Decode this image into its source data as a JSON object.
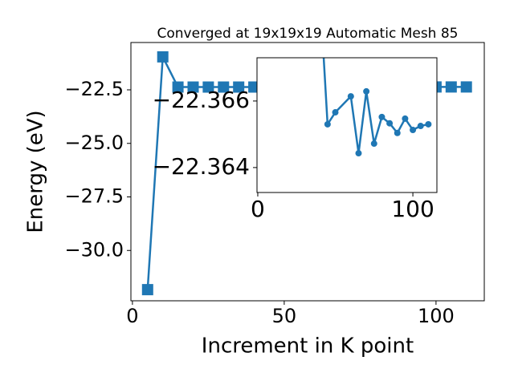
{
  "chart_data": [
    {
      "type": "line",
      "title": "Converged at 19x19x19 Automatic Mesh 85",
      "xlabel": "Increment in K point",
      "ylabel": "Energy (eV)",
      "x": [
        5,
        10,
        15,
        20,
        25,
        30,
        35,
        40,
        45,
        50,
        60,
        65,
        70,
        75,
        80,
        85,
        90,
        95,
        100,
        105,
        110
      ],
      "series": [
        {
          "color": "#1f77b4",
          "marker": "square",
          "values": [
            -31.83,
            -20.96,
            -22.37,
            -22.37,
            -22.37,
            -22.37,
            -22.37,
            -22.3693,
            -22.3653,
            -22.36566,
            -22.36614,
            -22.36443,
            -22.36629,
            -22.36472,
            -22.36552,
            -22.36533,
            -22.36504,
            -22.36547,
            -22.36513,
            -22.36525,
            -22.3653
          ]
        }
      ],
      "xlim": [
        -0.5,
        115.9
      ],
      "ylim": [
        -32.35,
        -20.29
      ],
      "xticks": [
        0,
        50,
        100
      ],
      "yticks": [
        {
          "value": -22.5,
          "label": "−22.5"
        },
        {
          "value": -25,
          "label": "−25.0"
        },
        {
          "value": -27.5,
          "label": "−27.5"
        },
        {
          "value": -30,
          "label": "−30.0"
        }
      ]
    },
    {
      "type": "line",
      "x": [
        40,
        45,
        50,
        60,
        65,
        70,
        75,
        80,
        85,
        90,
        95,
        100,
        105,
        110
      ],
      "series": [
        {
          "color": "#1f77b4",
          "marker": "circle",
          "values": [
            -22.3693,
            -22.3653,
            -22.36566,
            -22.36614,
            -22.36443,
            -22.36629,
            -22.36472,
            -22.36552,
            -22.36533,
            -22.36504,
            -22.36547,
            -22.36513,
            -22.36525,
            -22.3653
          ]
        }
      ],
      "xlim": [
        -0.5,
        115.5
      ],
      "ylim": [
        -22.36325,
        -22.3673
      ],
      "xticks": [
        0,
        100
      ],
      "yticks": [
        {
          "value": -22.366,
          "label": "−22.366"
        },
        {
          "value": -22.364,
          "label": "−22.364"
        }
      ]
    }
  ]
}
